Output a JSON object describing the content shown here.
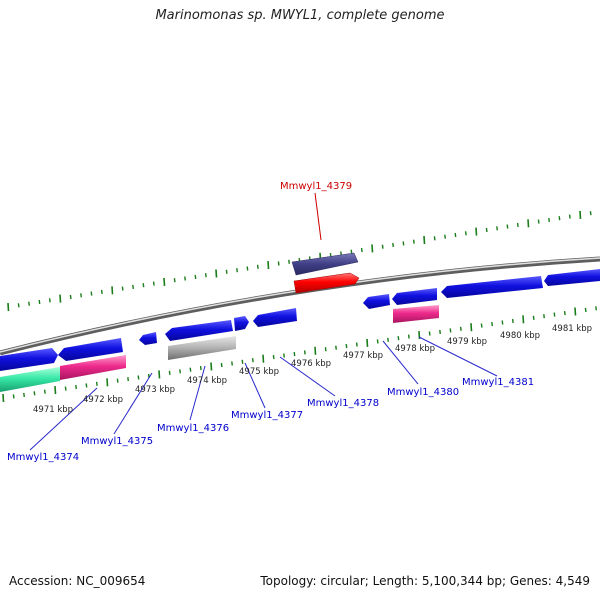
{
  "title": "Marinomonas sp. MWYL1, complete genome",
  "footer": {
    "accession": "Accession: NC_009654",
    "topology": "Topology: circular; Length: 5,100,344 bp; Genes: 4,549"
  },
  "colors": {
    "background": "#ffffff",
    "backbone": "#8a8a8a",
    "tick": "#1a7d1a",
    "gene_blue": "#1010e0",
    "gene_navy": "#403f86",
    "gene_red": "#ff0000",
    "gene_pink": "#ee2a8c",
    "gene_green": "#38e8a8",
    "gene_gray": "#b7b7b7",
    "label_blue": "#0000cc",
    "label_red": "#cc0000",
    "kbp_text": "#222222"
  },
  "scale_labels": [
    "4971 kbp",
    "4972 kbp",
    "4973 kbp",
    "4974 kbp",
    "4975 kbp",
    "4976 kbp",
    "4977 kbp",
    "4978 kbp",
    "4979 kbp",
    "4980 kbp",
    "4981 kbp"
  ],
  "gene_labels": [
    {
      "id": "Mmwyl1_4374",
      "highlight": false
    },
    {
      "id": "Mmwyl1_4375",
      "highlight": false
    },
    {
      "id": "Mmwyl1_4376",
      "highlight": false
    },
    {
      "id": "Mmwyl1_4377",
      "highlight": false
    },
    {
      "id": "Mmwyl1_4378",
      "highlight": false
    },
    {
      "id": "Mmwyl1_4379",
      "highlight": true
    },
    {
      "id": "Mmwyl1_4380",
      "highlight": false
    },
    {
      "id": "Mmwyl1_4381",
      "highlight": false
    }
  ]
}
